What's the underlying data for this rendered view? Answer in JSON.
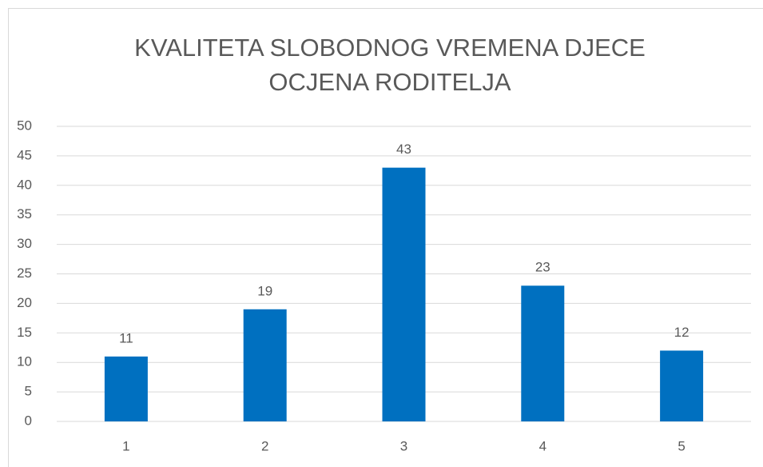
{
  "chart_data": {
    "type": "bar",
    "title": [
      "KVALITETA SLOBODNOG VREMENA DJECE",
      "OCJENA RODITELJA"
    ],
    "categories": [
      "1",
      "2",
      "3",
      "4",
      "5"
    ],
    "values": [
      11,
      19,
      43,
      23,
      12
    ],
    "color": "#0070c0",
    "ylim": [
      0,
      50
    ],
    "yticks": [
      0,
      5,
      10,
      15,
      20,
      25,
      30,
      35,
      40,
      45,
      50
    ],
    "grid": true,
    "data_labels": true
  }
}
